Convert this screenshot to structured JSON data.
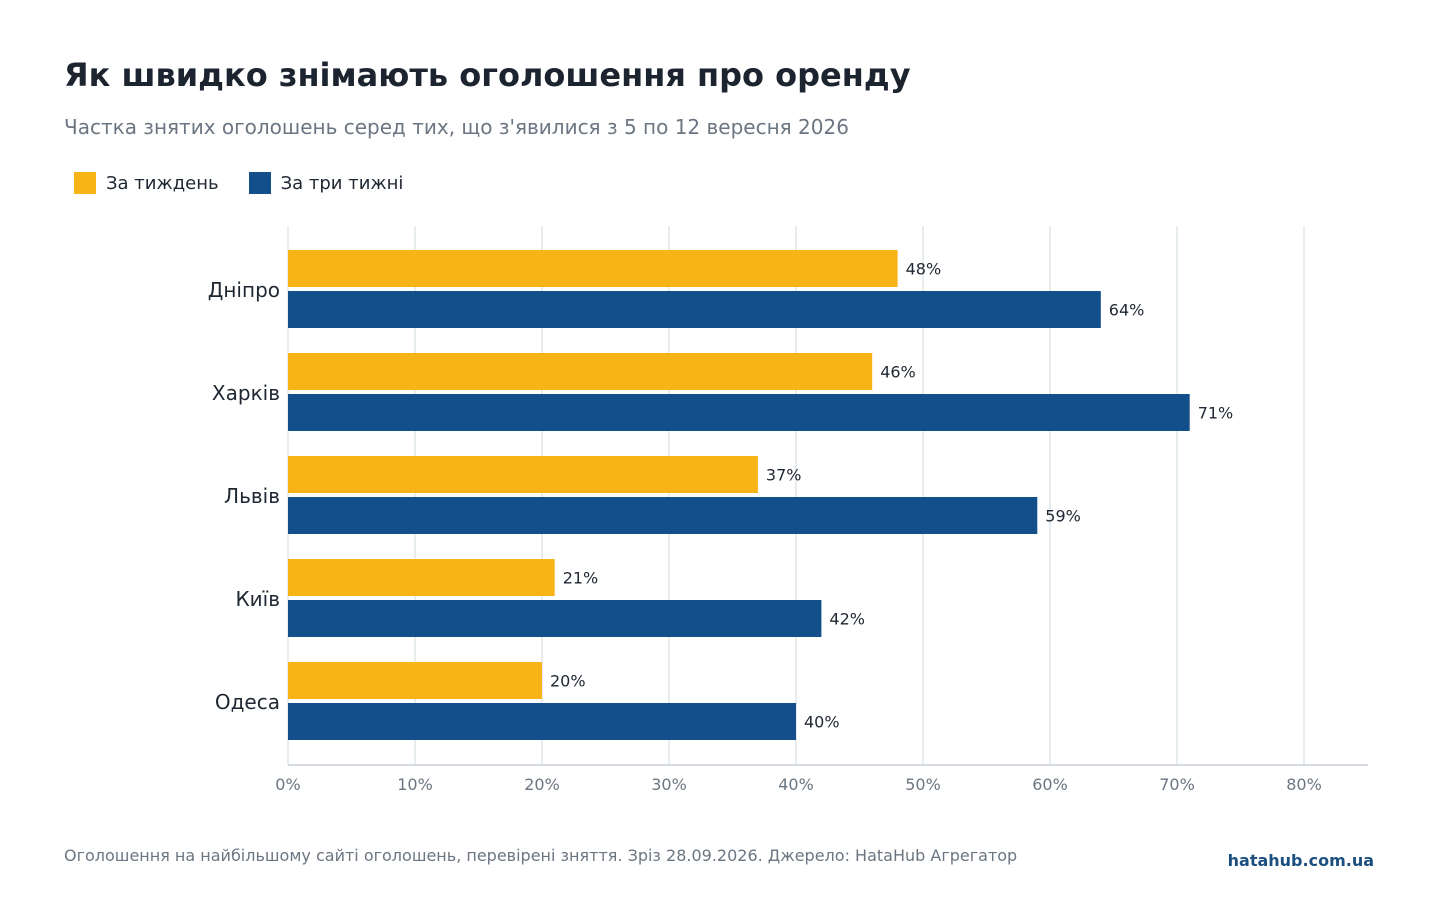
{
  "chart_data": {
    "type": "bar",
    "orientation": "horizontal",
    "title": "Як швидко знімають оголошення про оренду",
    "subtitle": "Частка знятих оголошень серед тих, що з'явилися з 5 по 12 вересня 2026",
    "categories": [
      "Дніпро",
      "Харків",
      "Львів",
      "Київ",
      "Одеса"
    ],
    "series": [
      {
        "name": "За тиждень",
        "color": "#f8b317",
        "values": [
          48,
          46,
          37,
          21,
          20
        ]
      },
      {
        "name": "За три тижні",
        "color": "#134f8b",
        "values": [
          64,
          71,
          59,
          42,
          40
        ]
      }
    ],
    "value_suffix": "%",
    "xlim": [
      0,
      85
    ],
    "ticks": [
      0,
      10,
      20,
      30,
      40,
      50,
      60,
      70,
      80
    ],
    "tick_labels": [
      "0%",
      "10%",
      "20%",
      "30%",
      "40%",
      "50%",
      "60%",
      "70%",
      "80%"
    ],
    "grid": true,
    "legend_position": "top-left"
  },
  "footer": {
    "note": "Оголошення на найбільшому сайті оголошень, перевірені зняття. Зріз 28.09.2026. Джерело: HataHub Агрегатор",
    "brand": "hatahub.com.ua"
  }
}
